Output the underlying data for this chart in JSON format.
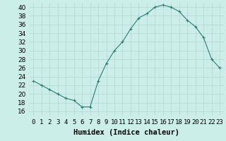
{
  "x": [
    0,
    1,
    2,
    3,
    4,
    5,
    6,
    7,
    8,
    9,
    10,
    11,
    12,
    13,
    14,
    15,
    16,
    17,
    18,
    19,
    20,
    21,
    22,
    23
  ],
  "y": [
    23,
    22,
    21,
    20,
    19,
    18.5,
    17,
    17,
    23,
    27,
    30,
    32,
    35,
    37.5,
    38.5,
    40,
    40.5,
    40,
    39,
    37,
    35.5,
    33,
    28,
    26
  ],
  "line_color": "#2e7d6e",
  "marker": "+",
  "bg_color": "#cceee8",
  "grid_color": "#b0d8d0",
  "xlabel": "Humidex (Indice chaleur)",
  "ylim": [
    15,
    41
  ],
  "xlim": [
    -0.5,
    23.5
  ],
  "yticks": [
    16,
    18,
    20,
    22,
    24,
    26,
    28,
    30,
    32,
    34,
    36,
    38,
    40
  ],
  "xtick_labels": [
    "0",
    "1",
    "2",
    "3",
    "4",
    "5",
    "6",
    "7",
    "8",
    "9",
    "10",
    "11",
    "12",
    "13",
    "14",
    "15",
    "16",
    "17",
    "18",
    "19",
    "20",
    "21",
    "22",
    "23"
  ],
  "xlabel_fontsize": 7.5,
  "tick_fontsize": 6.5
}
